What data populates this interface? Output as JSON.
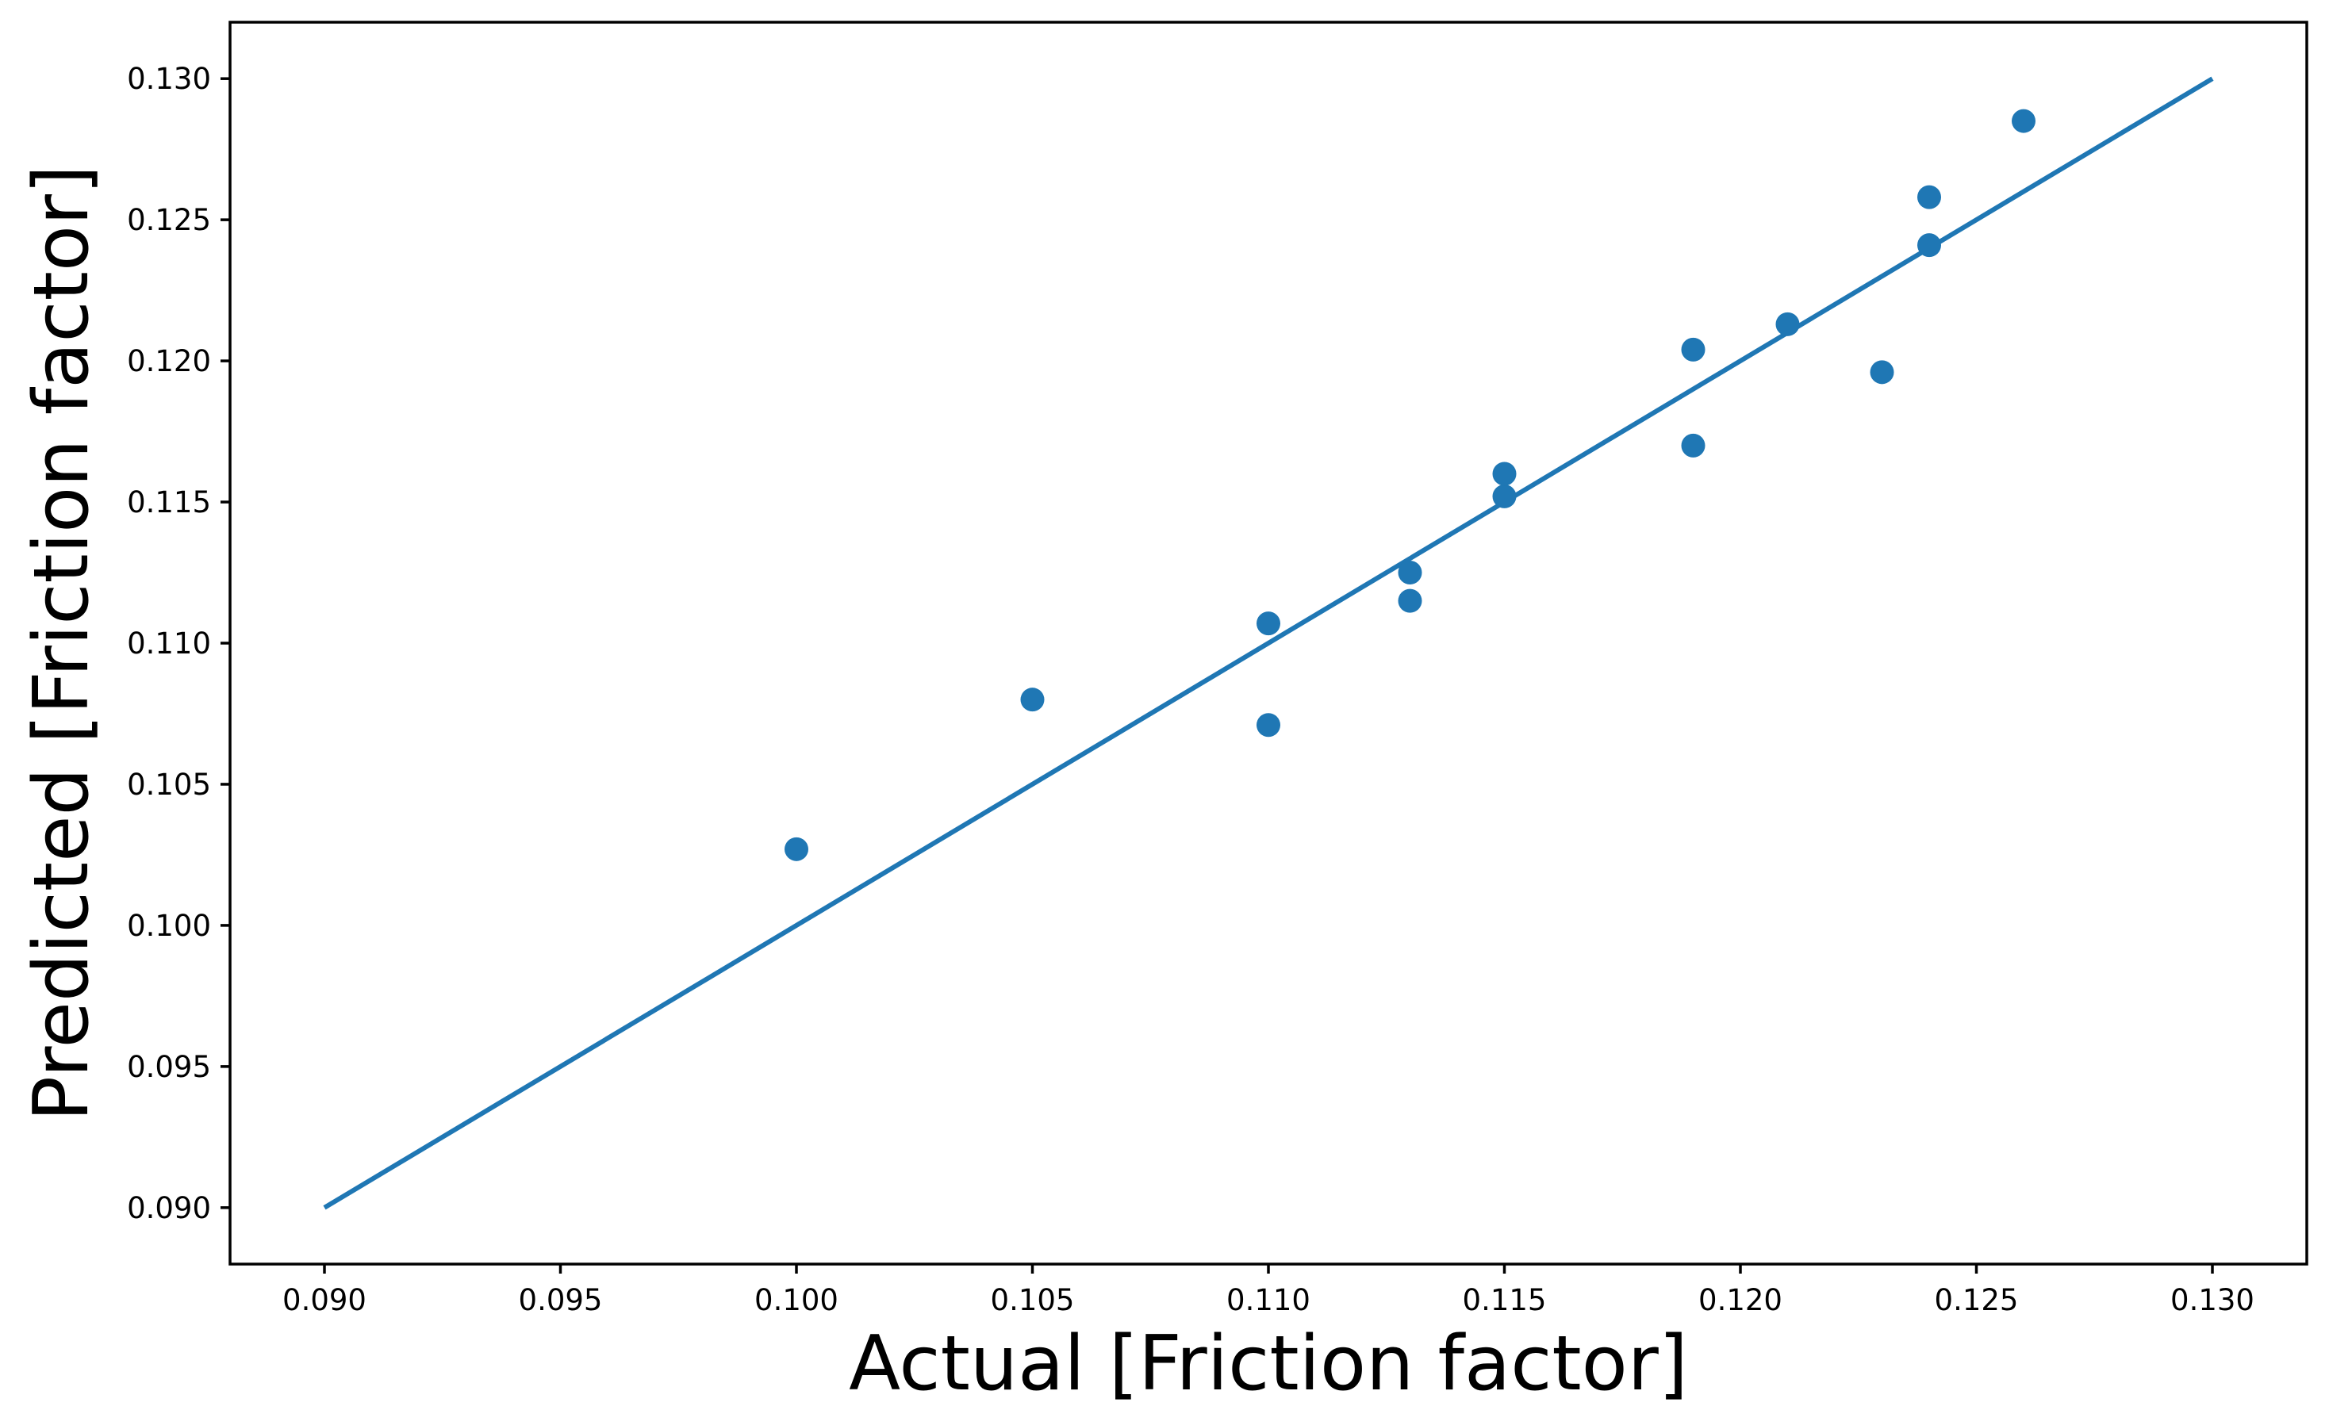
{
  "figure": {
    "background": "#ffffff",
    "frame_color": "#000000",
    "accent_color": "#1f77b4"
  },
  "chart_data": {
    "type": "scatter",
    "title": "",
    "xlabel": "Actual [Friction factor]",
    "ylabel": "Predicted [Friction factor]",
    "xlim": [
      0.088,
      0.132
    ],
    "ylim": [
      0.088,
      0.132
    ],
    "grid": false,
    "legend_position": "none",
    "x_ticks": [
      0.09,
      0.095,
      0.1,
      0.105,
      0.11,
      0.115,
      0.12,
      0.125,
      0.13
    ],
    "x_tick_labels": [
      "0.090",
      "0.095",
      "0.100",
      "0.105",
      "0.110",
      "0.115",
      "0.120",
      "0.125",
      "0.130"
    ],
    "y_ticks": [
      0.09,
      0.095,
      0.1,
      0.105,
      0.11,
      0.115,
      0.12,
      0.125,
      0.13
    ],
    "y_tick_labels": [
      "0.090",
      "0.095",
      "0.100",
      "0.105",
      "0.110",
      "0.115",
      "0.120",
      "0.125",
      "0.130"
    ],
    "series": [
      {
        "name": "identity-line",
        "type": "line",
        "color": "#1f77b4",
        "line_width": 6,
        "points": [
          [
            0.09,
            0.09
          ],
          [
            0.13,
            0.13
          ]
        ]
      },
      {
        "name": "predicted-vs-actual",
        "type": "scatter",
        "color": "#1f77b4",
        "marker_radius": 15,
        "points": [
          [
            0.1,
            0.1027
          ],
          [
            0.105,
            0.108
          ],
          [
            0.11,
            0.1071
          ],
          [
            0.11,
            0.1107
          ],
          [
            0.113,
            0.1115
          ],
          [
            0.113,
            0.1125
          ],
          [
            0.115,
            0.1152
          ],
          [
            0.115,
            0.116
          ],
          [
            0.119,
            0.117
          ],
          [
            0.119,
            0.1204
          ],
          [
            0.121,
            0.1213
          ],
          [
            0.123,
            0.1196
          ],
          [
            0.124,
            0.1241
          ],
          [
            0.124,
            0.1258
          ],
          [
            0.126,
            0.1285
          ]
        ]
      }
    ]
  }
}
